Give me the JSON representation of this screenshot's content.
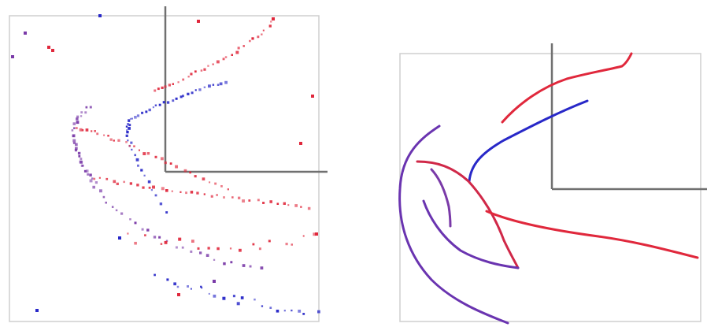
{
  "colors": {
    "background": "#ffffff",
    "frame": "#c8c8c8",
    "axis": "#707070",
    "red_track": "#e0283c",
    "blue_track": "#2828c8",
    "purple_track": "#7a3aa8"
  },
  "panels": [
    {
      "name": "raw-hits-panel",
      "style": "scattered dots"
    },
    {
      "name": "fitted-tracks-panel",
      "style": "continuous curves"
    }
  ]
}
